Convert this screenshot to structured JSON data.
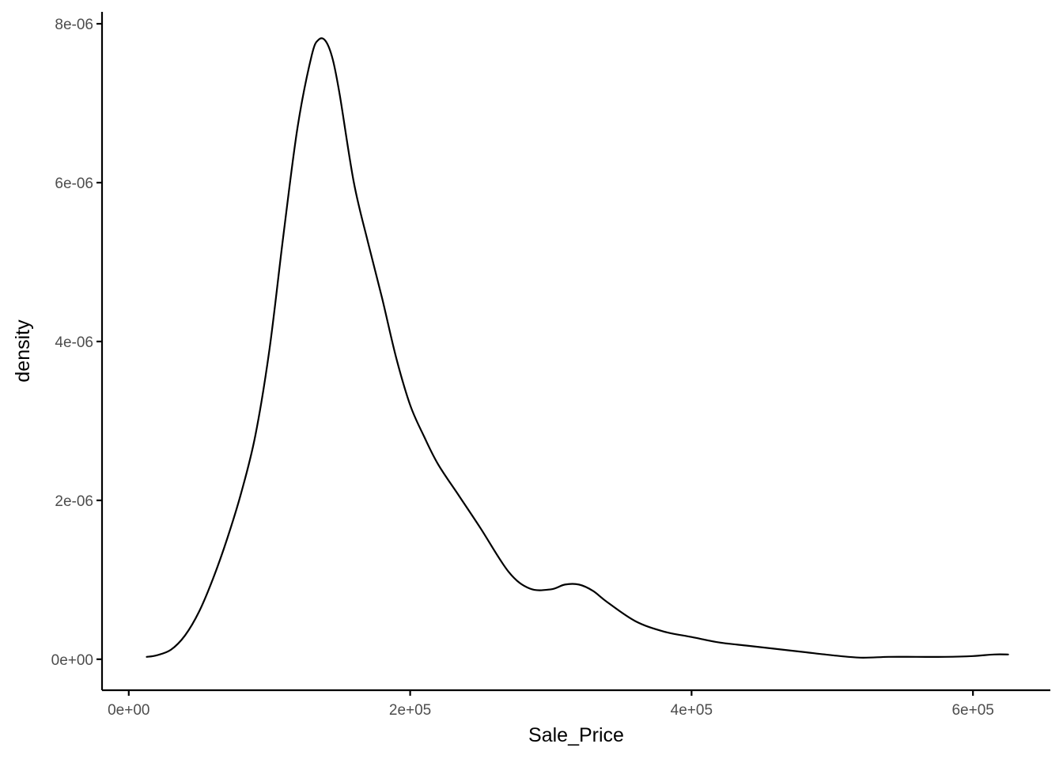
{
  "chart_data": {
    "type": "line",
    "title": "",
    "xlabel": "Sale_Price",
    "ylabel": "density",
    "xlim": [
      -19000,
      655000
    ],
    "ylim": [
      -3.9e-07,
      8.15e-06
    ],
    "grid": false,
    "legend": "none",
    "x_ticks": [
      {
        "value": 0,
        "label": "0e+00"
      },
      {
        "value": 200000,
        "label": "2e+05"
      },
      {
        "value": 400000,
        "label": "4e+05"
      },
      {
        "value": 600000,
        "label": "6e+05"
      }
    ],
    "y_ticks": [
      {
        "value": 0,
        "label": "0e+00"
      },
      {
        "value": 2e-06,
        "label": "2e-06"
      },
      {
        "value": 4e-06,
        "label": "4e-06"
      },
      {
        "value": 6e-06,
        "label": "6e-06"
      },
      {
        "value": 8e-06,
        "label": "8e-06"
      }
    ],
    "series": [
      {
        "color": "#000000",
        "x": [
          12789,
          20000,
          30000,
          40000,
          50000,
          60000,
          70000,
          80000,
          90000,
          100000,
          110000,
          120000,
          130000,
          135000,
          140000,
          145000,
          150000,
          160000,
          170000,
          180000,
          190000,
          200000,
          210000,
          220000,
          235000,
          250000,
          270000,
          285000,
          300000,
          310000,
          320000,
          330000,
          340000,
          360000,
          380000,
          400000,
          420000,
          440000,
          460000,
          480000,
          500000,
          520000,
          540000,
          560000,
          580000,
          600000,
          615000,
          625000
        ],
        "y": [
          3e-08,
          5e-08,
          1.2e-07,
          3e-07,
          6e-07,
          1.02e-06,
          1.52e-06,
          2.1e-06,
          2.82e-06,
          3.9e-06,
          5.35e-06,
          6.7e-06,
          7.6e-06,
          7.8e-06,
          7.78e-06,
          7.55e-06,
          7.1e-06,
          6e-06,
          5.25e-06,
          4.55e-06,
          3.8e-06,
          3.2e-06,
          2.8e-06,
          2.45e-06,
          2.05e-06,
          1.65e-06,
          1.1e-06,
          8.9e-07,
          8.8e-07,
          9.4e-07,
          9.4e-07,
          8.6e-07,
          7.2e-07,
          4.8e-07,
          3.5e-07,
          2.8e-07,
          2.1e-07,
          1.7e-07,
          1.3e-07,
          9e-08,
          5e-08,
          2e-08,
          3e-08,
          3e-08,
          3e-08,
          4e-08,
          6e-08,
          6e-08
        ]
      }
    ]
  }
}
